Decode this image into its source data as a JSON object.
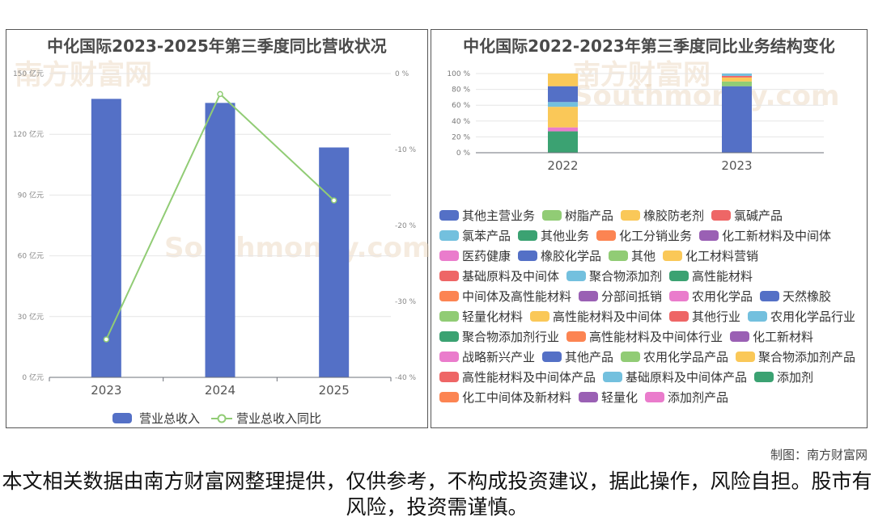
{
  "chart_data": [
    {
      "type": "bar",
      "title": "中化国际2023-2025年第三季度同比营收状况",
      "categories": [
        "2023",
        "2024",
        "2025"
      ],
      "series": [
        {
          "name": "营业总收入",
          "type": "bar",
          "axis": "left",
          "unit": "亿元",
          "values": [
            137.5,
            135.5,
            113.5
          ]
        },
        {
          "name": "营业总收入同比",
          "type": "line",
          "axis": "right",
          "unit": "%",
          "values": [
            -35.0,
            -2.7,
            -16.7
          ]
        }
      ],
      "y_left": {
        "min": 0,
        "max": 150,
        "ticks": [
          0,
          30,
          60,
          90,
          120,
          150
        ],
        "tick_labels": [
          "0 亿元",
          "30 亿元",
          "60 亿元",
          "90 亿元",
          "120 亿元",
          "150 亿元"
        ]
      },
      "y_right": {
        "min": -40,
        "max": 0,
        "ticks": [
          -40,
          -30,
          -20,
          -10,
          0
        ],
        "tick_labels": [
          "-40 %",
          "-30 %",
          "-20 %",
          "-10 %",
          "0 %"
        ]
      },
      "grid": true,
      "legend": "bottom",
      "colors": {
        "bar": "#5470c6",
        "line": "#91cc75"
      }
    },
    {
      "type": "bar",
      "stacked": true,
      "title": "中化国际2022-2023年第三季度同比业务结构变化",
      "categories": [
        "2022",
        "2023"
      ],
      "y": {
        "min": 0,
        "max": 100,
        "ticks": [
          0,
          20,
          40,
          60,
          80,
          100
        ],
        "tick_labels": [
          "0 %",
          "20 %",
          "40 %",
          "60 %",
          "80 %",
          "100 %"
        ]
      },
      "grid": true,
      "legend": "bottom",
      "series": [
        {
          "name": "其他主营业务",
          "color": "#5470c6",
          "values": [
            0,
            0
          ]
        },
        {
          "name": "树脂产品",
          "color": "#91cc75",
          "values": [
            0,
            0
          ]
        },
        {
          "name": "橡胶防老剂",
          "color": "#fac858",
          "values": [
            0,
            0
          ]
        },
        {
          "name": "氯碱产品",
          "color": "#ee6666",
          "values": [
            0,
            0
          ]
        },
        {
          "name": "氯苯产品",
          "color": "#73c0de",
          "values": [
            0,
            0
          ]
        },
        {
          "name": "其他业务",
          "color": "#3ba272",
          "values": [
            27,
            0
          ]
        },
        {
          "name": "化工分销业务",
          "color": "#fc8452",
          "values": [
            0,
            0
          ]
        },
        {
          "name": "化工新材料及中间体",
          "color": "#9a60b4",
          "values": [
            0,
            0
          ]
        },
        {
          "name": "医药健康",
          "color": "#ea7ccc",
          "values": [
            5,
            0
          ]
        },
        {
          "name": "橡胶化学品",
          "color": "#5470c6",
          "values": [
            0,
            0
          ]
        },
        {
          "name": "其他",
          "color": "#91cc75",
          "values": [
            0,
            0
          ]
        },
        {
          "name": "化工材料营销",
          "color": "#fac858",
          "values": [
            26,
            0
          ]
        },
        {
          "name": "基础原料及中间体",
          "color": "#ee6666",
          "values": [
            0,
            0
          ]
        },
        {
          "name": "聚合物添加剂",
          "color": "#73c0de",
          "values": [
            6,
            0
          ]
        },
        {
          "name": "高性能材料",
          "color": "#3ba272",
          "values": [
            0,
            0
          ]
        },
        {
          "name": "中间体及高性能材料",
          "color": "#fc8452",
          "values": [
            0,
            0
          ]
        },
        {
          "name": "分部间抵销",
          "color": "#9a60b4",
          "values": [
            0,
            0
          ]
        },
        {
          "name": "农用化学品",
          "color": "#ea7ccc",
          "values": [
            0,
            0
          ]
        },
        {
          "name": "天然橡胶",
          "color": "#5470c6",
          "values": [
            20,
            0
          ]
        },
        {
          "name": "轻量化材料",
          "color": "#91cc75",
          "values": [
            0,
            0
          ]
        },
        {
          "name": "高性能材料及中间体",
          "color": "#fac858",
          "values": [
            16,
            0
          ]
        },
        {
          "name": "其他行业",
          "color": "#ee6666",
          "values": [
            0,
            0
          ]
        },
        {
          "name": "农用化学品行业",
          "color": "#73c0de",
          "values": [
            0,
            0
          ]
        },
        {
          "name": "聚合物添加剂行业",
          "color": "#3ba272",
          "values": [
            0,
            0
          ]
        },
        {
          "name": "高性能材料及中间体行业",
          "color": "#fc8452",
          "values": [
            0,
            0
          ]
        },
        {
          "name": "化工新材料",
          "color": "#9a60b4",
          "values": [
            0,
            0
          ]
        },
        {
          "name": "战略新兴产业",
          "color": "#ea7ccc",
          "values": [
            0,
            0
          ]
        },
        {
          "name": "其他产品",
          "color": "#5470c6",
          "values": [
            0,
            84
          ]
        },
        {
          "name": "农用化学品产品",
          "color": "#91cc75",
          "values": [
            0,
            6
          ]
        },
        {
          "name": "聚合物添加剂产品",
          "color": "#fac858",
          "values": [
            0,
            5
          ]
        },
        {
          "name": "高性能材料及中间体产品",
          "color": "#ee6666",
          "values": [
            0,
            2
          ]
        },
        {
          "name": "基础原料及中间体产品",
          "color": "#73c0de",
          "values": [
            0,
            3
          ]
        },
        {
          "name": "添加剂",
          "color": "#3ba272",
          "values": [
            0,
            0
          ]
        },
        {
          "name": "化工中间体及新材料",
          "color": "#fc8452",
          "values": [
            0,
            0
          ]
        },
        {
          "name": "轻量化",
          "color": "#9a60b4",
          "values": [
            0,
            0
          ]
        },
        {
          "name": "添加剂产品",
          "color": "#ea7ccc",
          "values": [
            0,
            0
          ]
        }
      ]
    }
  ],
  "watermark": {
    "cn": "南方财富网",
    "en": "Southmoney.com"
  },
  "credit": "制图：南方财富网",
  "disclaimer": "本文相关数据由南方财富网整理提供，仅供参考，不构成投资建议，据此操作，风险自担。股市有风险，投资需谨慎。"
}
